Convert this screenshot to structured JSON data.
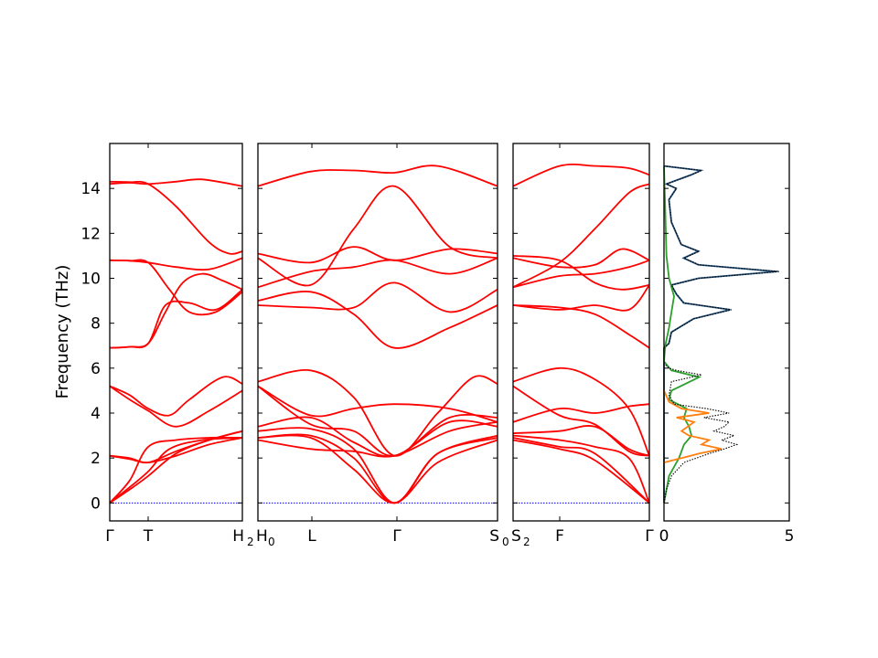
{
  "chart_data": {
    "type": "line",
    "ylabel": "Frequency (THz)",
    "ylim": [
      -0.8,
      16.0
    ],
    "yticks": [
      "0",
      "2",
      "4",
      "6",
      "8",
      "10",
      "12",
      "14"
    ],
    "panels": [
      {
        "qpoints": [
          "Γ",
          "T",
          "H"
        ],
        "labels": [
          {
            "main": "Γ"
          },
          {
            "main": "T"
          },
          {
            "main": "H",
            "sub": "2"
          }
        ]
      },
      {
        "qpoints": [
          "H₀",
          "L",
          "Γ",
          "S₀"
        ],
        "labels": [
          {
            "main": "H",
            "sub": "0"
          },
          {
            "main": "L"
          },
          {
            "main": "Γ"
          },
          {
            "main": "S",
            "sub": "0"
          }
        ]
      },
      {
        "qpoints": [
          "S₂",
          "F",
          "Γ"
        ],
        "labels": [
          {
            "main": "S",
            "sub": "2"
          },
          {
            "main": "F"
          },
          {
            "main": "Γ"
          }
        ]
      }
    ],
    "dos": {
      "xlim": [
        0,
        5
      ],
      "xticks": [
        "0",
        "5"
      ],
      "series": [
        {
          "color": "#1f4e79",
          "style": "solid"
        },
        {
          "color": "#2ca02c",
          "style": "solid"
        },
        {
          "color": "#ff7f0e",
          "style": "solid"
        },
        {
          "color": "#000000",
          "style": "dotted"
        }
      ]
    },
    "band_color": "#ff0000",
    "zero_line_color": "#0000ff"
  }
}
